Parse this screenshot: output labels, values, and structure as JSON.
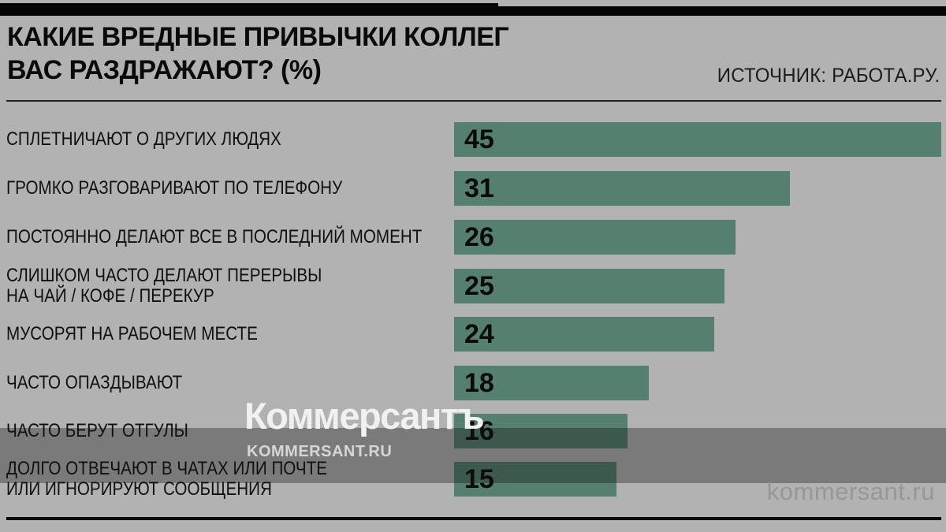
{
  "app": {
    "background_color": "#b2b2b2",
    "bar_color": "#55806f",
    "accent_bar_color": "#000000"
  },
  "header": {
    "title_line1": "КАКИЕ ВРЕДНЫЕ ПРИВЫЧКИ КОЛЛЕГ",
    "title_line2": "ВАС РАЗДРАЖАЮТ? (%)",
    "source": "ИСТОЧНИК: РАБОТА.РУ."
  },
  "chart_data": {
    "type": "bar",
    "orientation": "horizontal",
    "title": "КАКИЕ ВРЕДНЫЕ ПРИВЫЧКИ КОЛЛЕГ ВАС РАЗДРАЖАЮТ? (%)",
    "unit": "%",
    "source": "ИСТОЧНИК: РАБОТА.РУ.",
    "categories": [
      "СПЛЕТНИЧАЮТ О ДРУГИХ ЛЮДЯХ",
      "ГРОМКО РАЗГОВАРИВАЮТ ПО ТЕЛЕФОНУ",
      "ПОСТОЯННО ДЕЛАЮТ ВСЕ В ПОСЛЕДНИЙ МОМЕНТ",
      "СЛИШКОМ ЧАСТО ДЕЛАЮТ ПЕРЕРЫВЫ НА ЧАЙ / КОФЕ / ПЕРЕКУР",
      "МУСОРЯТ НА РАБОЧЕМ МЕСТЕ",
      "ЧАСТО ОПАЗДЫВАЮТ",
      "ЧАСТО БЕРУТ ОТГУЛЫ",
      "ДОЛГО ОТВЕЧАЮТ В ЧАТАХ ИЛИ ПОЧТЕ ИЛИ ИГНОРИРУЮТ СООБЩЕНИЯ"
    ],
    "values": [
      45,
      31,
      26,
      25,
      24,
      18,
      16,
      15
    ],
    "xlim": [
      0,
      45
    ],
    "bar_color": "#55806f",
    "grid": false,
    "legend": "none"
  },
  "rows": [
    {
      "label_lines": [
        "СПЛЕТНИЧАЮТ О ДРУГИХ ЛЮДЯХ"
      ],
      "value": "45"
    },
    {
      "label_lines": [
        "ГРОМКО РАЗГОВАРИВАЮТ ПО ТЕЛЕФОНУ"
      ],
      "value": "31"
    },
    {
      "label_lines": [
        "ПОСТОЯННО ДЕЛАЮТ ВСЕ В ПОСЛЕДНИЙ МОМЕНТ"
      ],
      "value": "26"
    },
    {
      "label_lines": [
        "СЛИШКОМ ЧАСТО ДЕЛАЮТ ПЕРЕРЫВЫ",
        "НА ЧАЙ / КОФЕ / ПЕРЕКУР"
      ],
      "value": "25"
    },
    {
      "label_lines": [
        "МУСОРЯТ НА РАБОЧЕМ МЕСТЕ"
      ],
      "value": "24"
    },
    {
      "label_lines": [
        "ЧАСТО ОПАЗДЫВАЮТ"
      ],
      "value": "18"
    },
    {
      "label_lines": [
        "ЧАСТО БЕРУТ ОТГУЛЫ"
      ],
      "value": "16"
    },
    {
      "label_lines": [
        "ДОЛГО ОТВЕЧАЮТ В ЧАТАХ ИЛИ ПОЧТЕ",
        "ИЛИ ИГНОРИРУЮТ СООБЩЕНИЯ"
      ],
      "value": "15"
    }
  ],
  "watermark": {
    "logo_text": "Коммерсантъ",
    "logo_subtext": "KOMMERSANT.RU",
    "site_text": "kommersant.ru"
  }
}
